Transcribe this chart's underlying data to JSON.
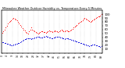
{
  "title": "Milwaukee Weather Outdoor Humidity vs. Temperature Every 5 Minutes",
  "bg_color": "#ffffff",
  "grid_color": "#b0b0b0",
  "red_color": "#ff0000",
  "blue_color": "#0000dd",
  "ylim": [
    0,
    110
  ],
  "yticks_right": [
    10,
    20,
    30,
    40,
    50,
    60,
    70,
    80,
    90,
    100
  ],
  "ytick_labels_right": [
    "10",
    "20",
    "30",
    "40",
    "50",
    "60",
    "70",
    "80",
    "90",
    "100"
  ],
  "red_y": [
    52,
    55,
    60,
    65,
    70,
    75,
    80,
    83,
    85,
    88,
    90,
    89,
    87,
    84,
    80,
    76,
    72,
    68,
    64,
    60,
    57,
    54,
    52,
    50,
    55,
    60,
    65,
    60,
    58,
    56,
    54,
    52,
    50,
    52,
    54,
    56,
    55,
    54,
    53,
    52,
    54,
    56,
    58,
    56,
    55,
    54,
    56,
    58,
    56,
    55,
    54,
    56,
    58,
    60,
    58,
    56,
    55,
    57,
    58,
    56,
    55,
    57,
    60,
    62,
    65,
    68,
    70,
    72,
    75,
    78,
    80,
    82,
    85,
    88,
    90,
    88,
    86,
    84,
    82,
    80,
    82,
    84,
    86,
    88,
    90,
    92,
    94,
    95,
    96,
    100
  ],
  "blue_y": [
    28,
    27,
    26,
    25,
    24,
    23,
    22,
    21,
    20,
    20,
    21,
    22,
    23,
    24,
    25,
    26,
    28,
    30,
    32,
    34,
    35,
    36,
    37,
    38,
    38,
    37,
    36,
    37,
    38,
    39,
    40,
    41,
    42,
    41,
    40,
    39,
    40,
    41,
    42,
    43,
    42,
    41,
    40,
    39,
    38,
    38,
    39,
    40,
    41,
    42,
    42,
    41,
    40,
    39,
    38,
    37,
    36,
    37,
    38,
    37,
    36,
    35,
    34,
    33,
    32,
    31,
    30,
    29,
    28,
    27,
    26,
    25,
    24,
    23,
    22,
    21,
    20,
    19,
    18,
    19,
    20,
    21,
    22,
    21,
    20,
    19,
    18,
    17,
    16,
    18
  ],
  "n_points": 90,
  "marker_size": 0.8,
  "figsize": [
    1.6,
    0.87
  ],
  "dpi": 100
}
